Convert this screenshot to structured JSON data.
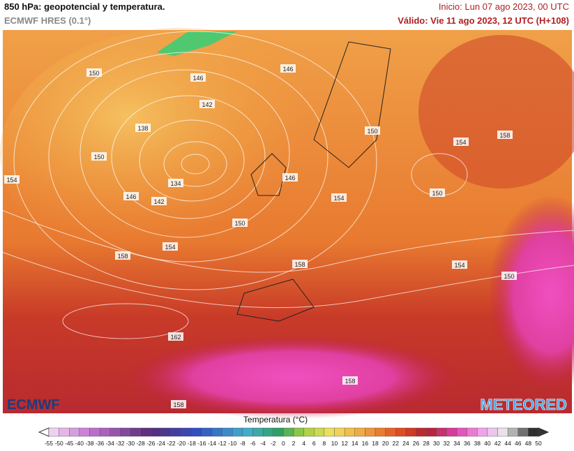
{
  "header": {
    "title": "850 hPa: geopotencial y temperatura.",
    "model": "ECMWF HRES (0.1°)",
    "init": "Inicio: Lun 07 ago 2023, 00 UTC",
    "valid": "Válido: Vie 11 ago 2023, 12 UTC (H+108)"
  },
  "map": {
    "contour_labels": [
      "150",
      "146",
      "146",
      "142",
      "138",
      "150",
      "154",
      "134",
      "146",
      "142",
      "146",
      "154",
      "150",
      "154",
      "158",
      "150",
      "150",
      "154",
      "158",
      "158",
      "154",
      "150",
      "162",
      "158",
      "158"
    ],
    "logos": [
      "ECMWF",
      "METEORED"
    ]
  },
  "colorbar": {
    "title": "Temperatura (°C)",
    "ticks": [
      -55,
      -50,
      -45,
      -40,
      -38,
      -36,
      -34,
      -32,
      -30,
      -28,
      -26,
      -24,
      -22,
      -20,
      -18,
      -16,
      -14,
      -12,
      -10,
      -8,
      -6,
      -4,
      -2,
      0,
      2,
      4,
      6,
      8,
      10,
      12,
      14,
      16,
      18,
      20,
      22,
      24,
      26,
      28,
      30,
      32,
      34,
      36,
      38,
      40,
      42,
      44,
      46,
      48,
      50
    ]
  }
}
